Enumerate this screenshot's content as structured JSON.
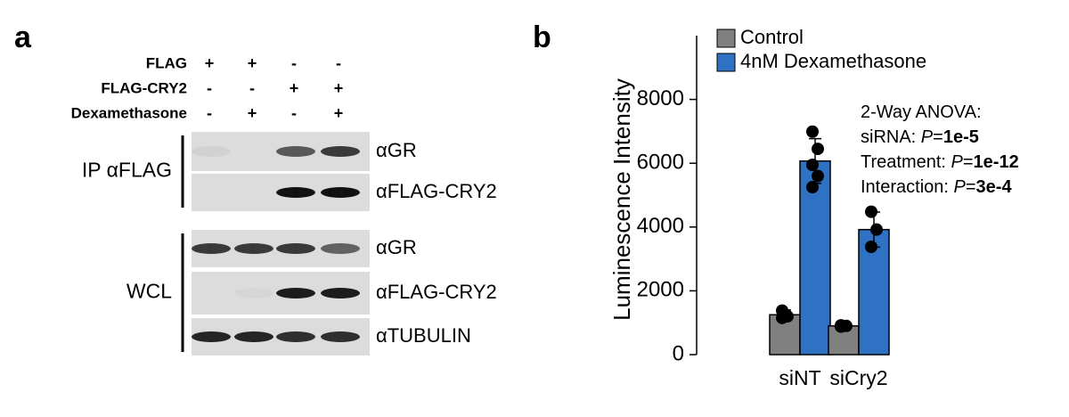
{
  "panel_a": {
    "panel_label": "a",
    "treatments": [
      {
        "label": "FLAG",
        "signs": [
          "+",
          "+",
          "-",
          "-"
        ]
      },
      {
        "label": "FLAG-CRY2",
        "signs": [
          "-",
          "-",
          "+",
          "+"
        ]
      },
      {
        "label": "Dexamethasone",
        "signs": [
          "-",
          "+",
          "-",
          "+"
        ]
      }
    ],
    "groups": [
      {
        "label": "IP αFLAG",
        "blots": [
          "αGR",
          "αFLAG-CRY2"
        ]
      },
      {
        "label": "WCL",
        "blots": [
          "αGR",
          "αFLAG-CRY2",
          "αTUBULIN"
        ]
      }
    ]
  },
  "chart_data": {
    "type": "bar",
    "panel_label": "b",
    "categories": [
      "siNT",
      "siCry2"
    ],
    "series": [
      {
        "name": "Control",
        "color": "#808080",
        "values": [
          1250,
          900
        ],
        "errors": [
          150,
          40
        ],
        "points": [
          [
            1380,
            1200,
            1150
          ],
          [
            920,
            900,
            880
          ]
        ]
      },
      {
        "name": "4nM Dexamethasone",
        "color": "#2f72c4",
        "values": [
          6070,
          3920
        ],
        "errors": [
          700,
          550
        ],
        "points": [
          [
            6990,
            6450,
            5950,
            5600,
            5250
          ],
          [
            4480,
            3920,
            3380
          ]
        ]
      }
    ],
    "y_label": "Luminescence Intensity",
    "ylim": [
      0,
      10000
    ],
    "yticks": [
      0,
      2000,
      4000,
      6000,
      8000
    ],
    "legend": "top-left",
    "annotation": [
      [
        {
          "text": "2-Way ANOVA:"
        }
      ],
      [
        {
          "text": "siRNA: "
        },
        {
          "text": "P",
          "style": "italic"
        },
        {
          "text": "="
        },
        {
          "text": "1e-5",
          "style": "bold"
        }
      ],
      [
        {
          "text": "Treatment: "
        },
        {
          "text": "P",
          "style": "italic"
        },
        {
          "text": "="
        },
        {
          "text": "1e-12",
          "style": "bold"
        }
      ],
      [
        {
          "text": "Interaction: "
        },
        {
          "text": "P",
          "style": "italic"
        },
        {
          "text": "="
        },
        {
          "text": "3e-4",
          "style": "bold"
        }
      ]
    ]
  }
}
